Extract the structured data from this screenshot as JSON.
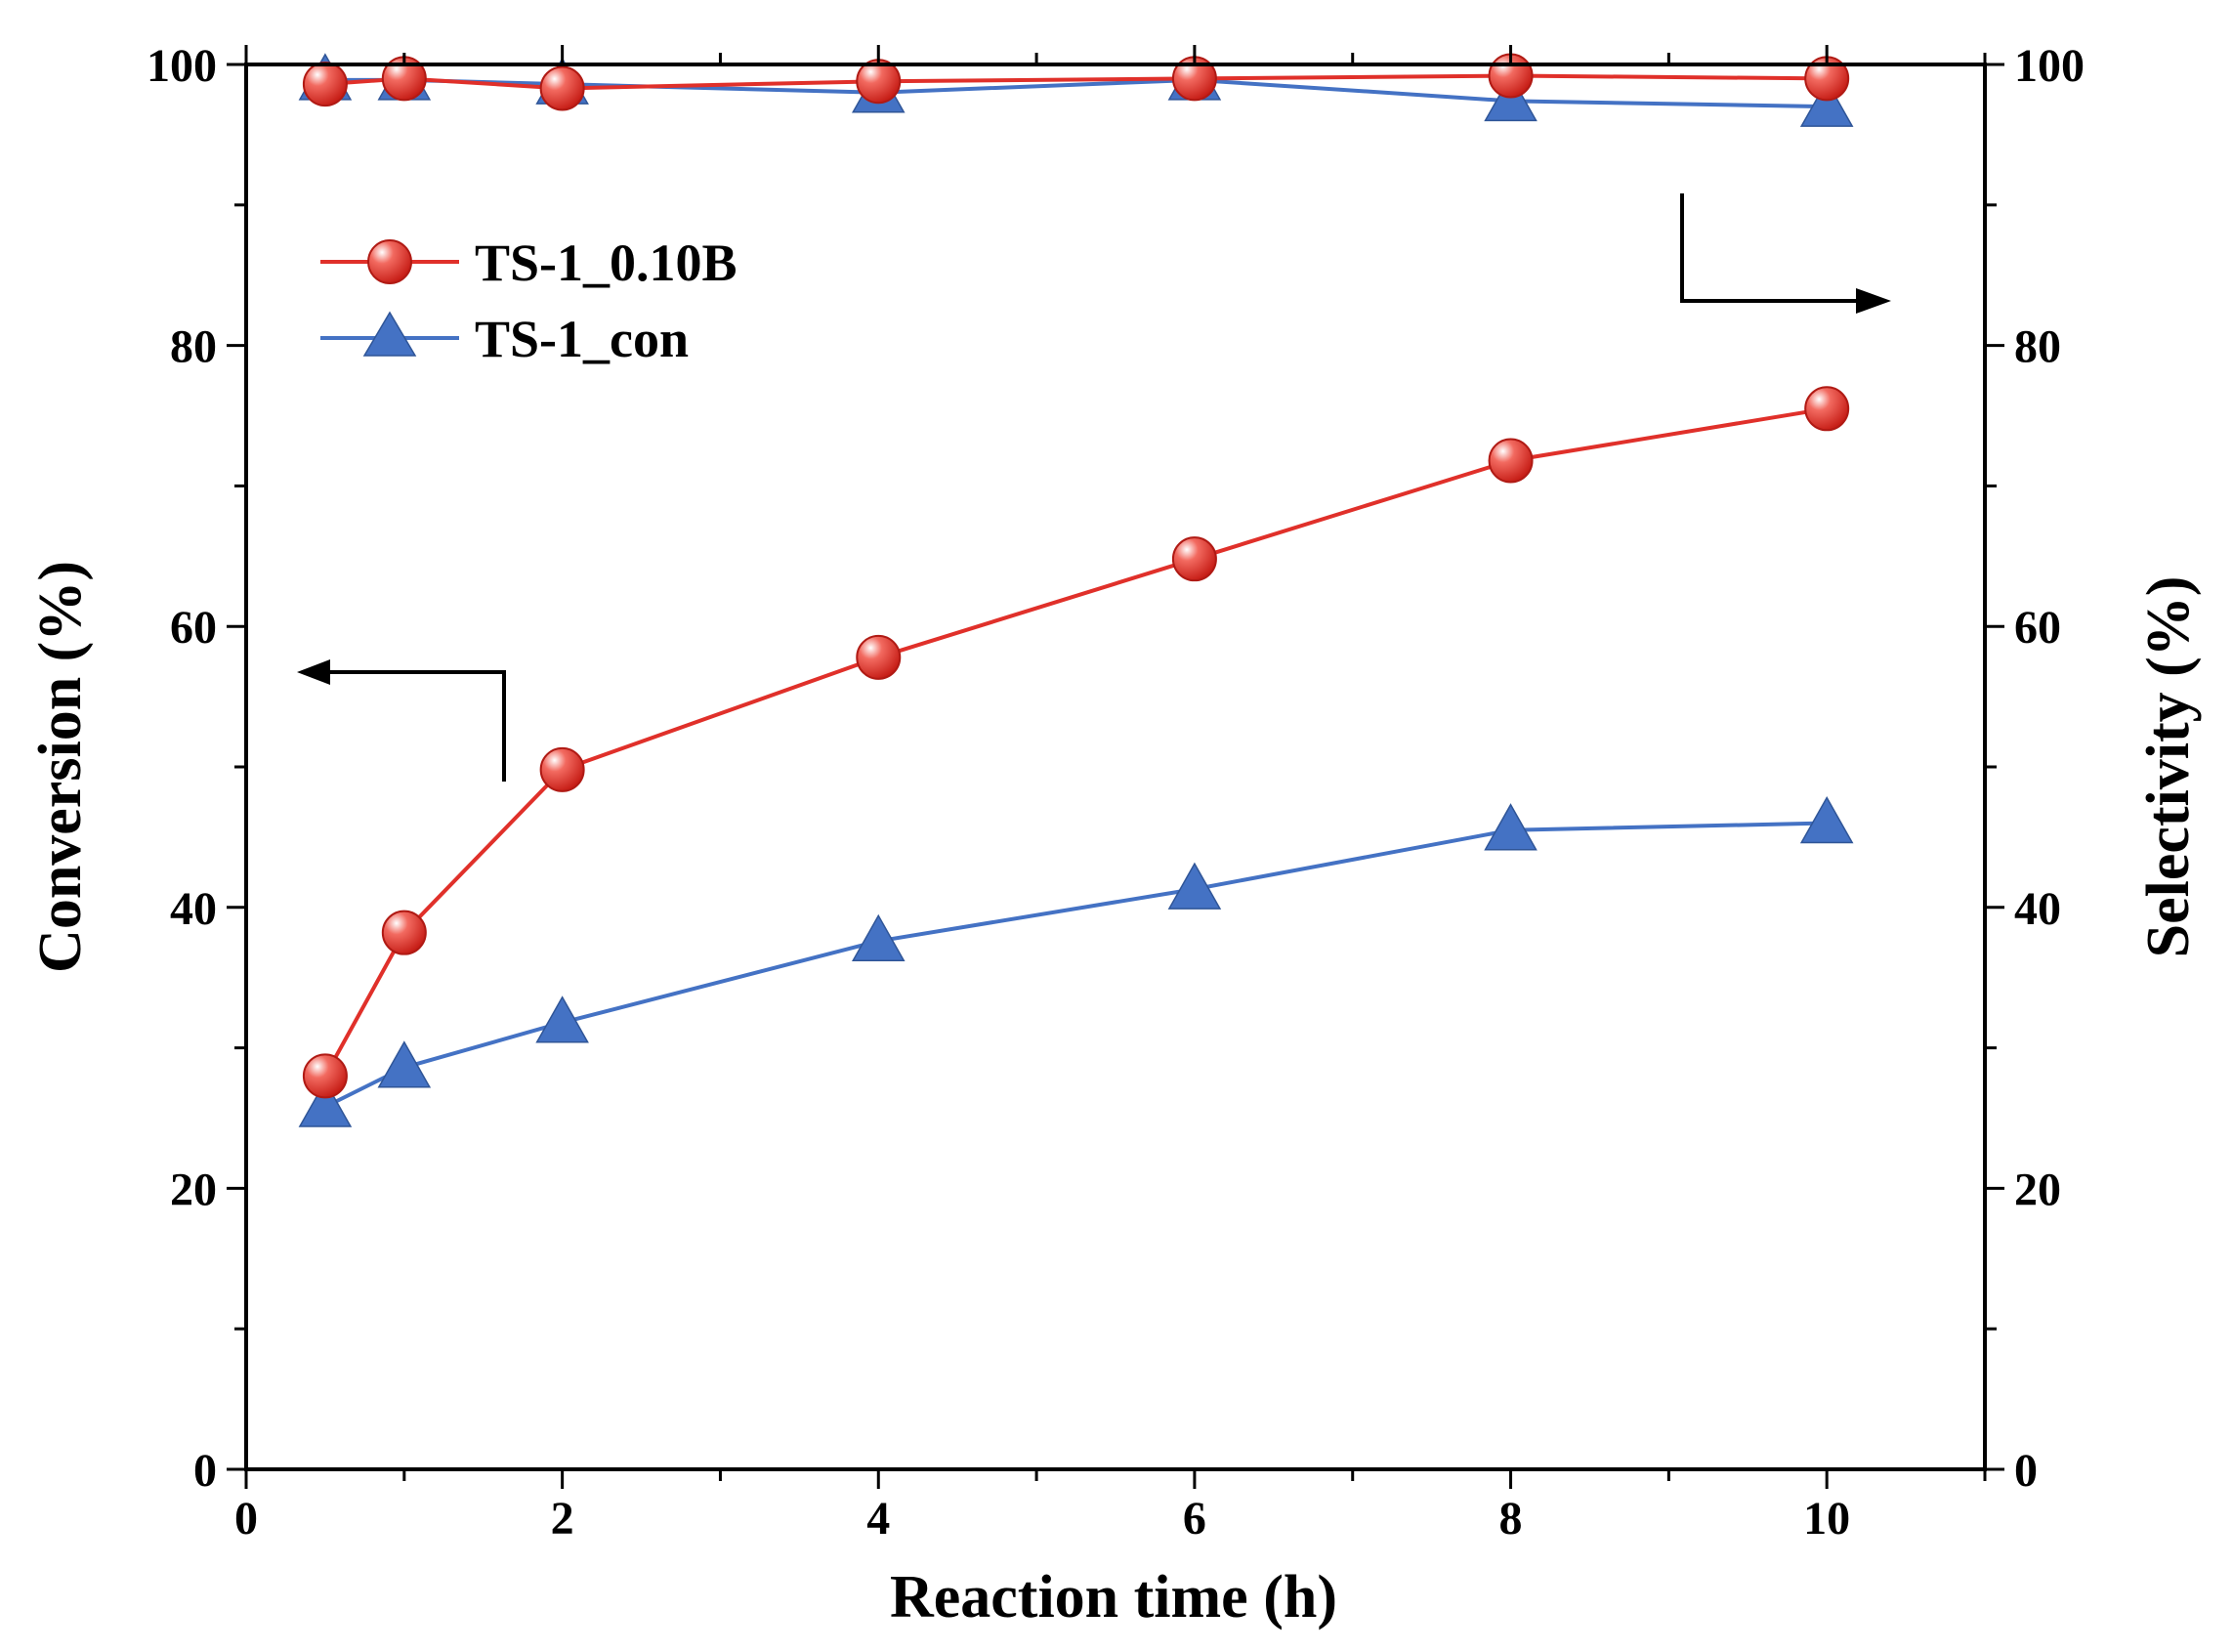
{
  "chart_data": {
    "type": "line",
    "xlabel": "Reaction time (h)",
    "ylabel_left": "Conversion (%)",
    "ylabel_right": "Selectivity (%)",
    "xlim": [
      0,
      11
    ],
    "ylim_left": [
      0,
      100
    ],
    "ylim_right": [
      0,
      100
    ],
    "x_ticks": [
      0,
      2,
      4,
      6,
      8,
      10
    ],
    "y_ticks_left": [
      0,
      20,
      40,
      60,
      80,
      100
    ],
    "y_ticks_right": [
      0,
      20,
      40,
      60,
      80,
      100
    ],
    "grid": false,
    "legend_position": "upper-left",
    "colors": {
      "red": "#e0302a",
      "blue": "#4472c4"
    },
    "x": [
      0.5,
      1,
      2,
      4,
      6,
      8,
      10
    ],
    "series": [
      {
        "name": "TS-1_0.10B",
        "quantity": "conversion",
        "axis": "left",
        "marker": "circle",
        "color": "#e0302a",
        "values": [
          28.0,
          38.2,
          49.8,
          57.8,
          64.8,
          71.8,
          75.5
        ]
      },
      {
        "name": "TS-1_con",
        "quantity": "conversion",
        "axis": "left",
        "marker": "triangle",
        "color": "#4472c4",
        "values": [
          25.8,
          28.6,
          31.8,
          37.6,
          41.3,
          45.5,
          46.0
        ]
      },
      {
        "name": "TS-1_0.10B",
        "quantity": "selectivity",
        "axis": "right",
        "marker": "circle",
        "color": "#e0302a",
        "values": [
          98.6,
          99.0,
          98.3,
          98.8,
          99.0,
          99.2,
          99.0
        ]
      },
      {
        "name": "TS-1_con",
        "quantity": "selectivity",
        "axis": "right",
        "marker": "triangle",
        "color": "#4472c4",
        "values": [
          98.9,
          98.9,
          98.6,
          98.0,
          98.9,
          97.4,
          97.0
        ]
      }
    ],
    "legend": [
      {
        "label": "TS-1_0.10B",
        "marker": "circle",
        "color": "#e0302a"
      },
      {
        "label": "TS-1_con",
        "marker": "triangle",
        "color": "#4472c4"
      }
    ],
    "annotations": [
      {
        "type": "arrow",
        "points_to": "left-axis",
        "describes": "conversion curves"
      },
      {
        "type": "arrow",
        "points_to": "right-axis",
        "describes": "selectivity curves"
      }
    ]
  }
}
